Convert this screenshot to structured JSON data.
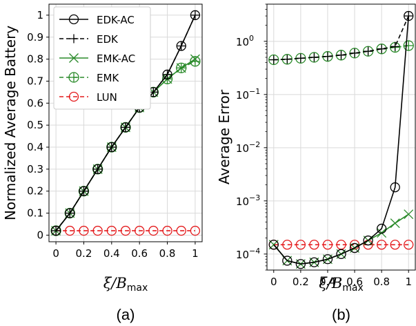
{
  "colors": {
    "black": "#000000",
    "green": "#2a8a2a",
    "red": "#e41a1c",
    "grid": "#d9d9d9"
  },
  "legend_position": "top-left of panel (a)",
  "chart_data": [
    {
      "type": "line",
      "panel_label": "(a)",
      "ylabel": "Normalized Average Battery",
      "xlabel_symbol": "ξ/B",
      "xlabel_sub": "max",
      "xlim": [
        0,
        1
      ],
      "ylim": [
        0,
        1
      ],
      "y_scale": "linear",
      "grid": true,
      "x": [
        0,
        0.1,
        0.2,
        0.3,
        0.4,
        0.5,
        0.6,
        0.7,
        0.8,
        0.9,
        1.0
      ],
      "x_ticks": [
        "0",
        "0.2",
        "0.4",
        "0.6",
        "0.8",
        "1"
      ],
      "y_ticks": [
        "0",
        "0.1",
        "0.2",
        "0.3",
        "0.4",
        "0.5",
        "0.6",
        "0.7",
        "0.8",
        "0.9",
        "1"
      ],
      "series": [
        {
          "name": "EDK-AC",
          "marker": "circle",
          "dash": "solid",
          "color": "black",
          "values": [
            0.02,
            0.1,
            0.2,
            0.3,
            0.4,
            0.49,
            0.58,
            0.65,
            0.73,
            0.86,
            1.0
          ]
        },
        {
          "name": "EDK",
          "marker": "plus",
          "dash": "dashed",
          "color": "black",
          "values": [
            0.02,
            0.1,
            0.2,
            0.3,
            0.4,
            0.49,
            0.58,
            0.65,
            0.73,
            0.86,
            1.0
          ]
        },
        {
          "name": "EMK-AC",
          "marker": "x",
          "dash": "solid",
          "color": "green",
          "values": [
            0.02,
            0.1,
            0.2,
            0.3,
            0.4,
            0.49,
            0.58,
            0.65,
            0.71,
            0.76,
            0.8
          ]
        },
        {
          "name": "EMK",
          "marker": "circle-plus",
          "dash": "dashed",
          "color": "green",
          "values": [
            0.02,
            0.1,
            0.2,
            0.3,
            0.4,
            0.49,
            0.58,
            0.65,
            0.71,
            0.76,
            0.79
          ]
        },
        {
          "name": "LUN",
          "marker": "circle",
          "dash": "dashed",
          "color": "red",
          "values": [
            0.02,
            0.02,
            0.02,
            0.02,
            0.02,
            0.02,
            0.02,
            0.02,
            0.02,
            0.02,
            0.02
          ]
        }
      ]
    },
    {
      "type": "line",
      "panel_label": "(b)",
      "ylabel": "Average Error",
      "xlabel_symbol": "ξ/B",
      "xlabel_sub": "max",
      "xlim": [
        0,
        1
      ],
      "ylim": [
        5e-05,
        5
      ],
      "y_scale": "log",
      "grid": true,
      "x": [
        0,
        0.1,
        0.2,
        0.3,
        0.4,
        0.5,
        0.6,
        0.7,
        0.8,
        0.9,
        1.0
      ],
      "x_ticks": [
        "0",
        "0.2",
        "0.4",
        "0.6",
        "0.8",
        "1"
      ],
      "y_ticks": [
        {
          "value": 1,
          "base": "10",
          "exp": "0"
        },
        {
          "value": 0.1,
          "base": "10",
          "exp": "−1"
        },
        {
          "value": 0.01,
          "base": "10",
          "exp": "−2"
        },
        {
          "value": 0.001,
          "base": "10",
          "exp": "−3"
        },
        {
          "value": 0.0001,
          "base": "10",
          "exp": "−4"
        }
      ],
      "series": [
        {
          "name": "EDK-AC",
          "marker": "circle",
          "dash": "solid",
          "color": "black",
          "values": [
            0.00015,
            7.5e-05,
            6.5e-05,
            7e-05,
            8e-05,
            0.0001,
            0.00013,
            0.00018,
            0.0003,
            0.0018,
            3.0
          ]
        },
        {
          "name": "EDK",
          "marker": "plus",
          "dash": "dashed",
          "color": "black",
          "values": [
            0.45,
            0.46,
            0.48,
            0.5,
            0.52,
            0.55,
            0.6,
            0.65,
            0.72,
            0.8,
            3.0
          ]
        },
        {
          "name": "EMK-AC",
          "marker": "x",
          "dash": "solid",
          "color": "green",
          "values": [
            0.00015,
            7.5e-05,
            6.5e-05,
            7e-05,
            8e-05,
            0.0001,
            0.00013,
            0.00018,
            0.00025,
            0.00038,
            0.00056
          ]
        },
        {
          "name": "EMK",
          "marker": "circle-plus",
          "dash": "dashed",
          "color": "green",
          "values": [
            0.45,
            0.46,
            0.48,
            0.5,
            0.52,
            0.55,
            0.6,
            0.65,
            0.72,
            0.77,
            0.83
          ]
        },
        {
          "name": "LUN",
          "marker": "circle",
          "dash": "dashed",
          "color": "red",
          "values": [
            0.00015,
            0.00015,
            0.00015,
            0.00015,
            0.00015,
            0.00015,
            0.00015,
            0.00015,
            0.00015,
            0.00015,
            0.00015
          ]
        }
      ]
    }
  ]
}
